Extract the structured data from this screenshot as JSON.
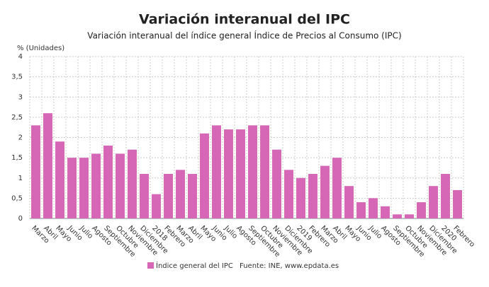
{
  "chart_data": {
    "type": "bar",
    "title": "Variación interanual del IPC",
    "subtitle": "Variación interanual del índice general Índice de Precios al Consumo (IPC)",
    "y_label": "% (Unidades)",
    "source": "Fuente: INE, www.epdata.es",
    "categories": [
      "Marzo",
      "Abril",
      "Mayo",
      "Junio",
      "Julio",
      "Agosto",
      "Septiembre",
      "Octubre",
      "Noviembre",
      "Diciembre",
      "2018",
      "Febrero",
      "Marzo",
      "Abril",
      "Mayo",
      "Junio",
      "Julio",
      "Agosto",
      "Septiembre",
      "Octubre",
      "Noviembre",
      "Diciembre",
      "2019",
      "Febrero",
      "Marzo",
      "Abril",
      "Mayo",
      "Junio",
      "Julio",
      "Agosto",
      "Septiembre",
      "Octubre",
      "Noviembre",
      "Diciembre",
      "2020",
      "Febrero"
    ],
    "series": [
      {
        "name": "Índice general del IPC",
        "color": "#d567b6",
        "values": [
          2.3,
          2.6,
          1.9,
          1.5,
          1.5,
          1.6,
          1.8,
          1.6,
          1.7,
          1.1,
          0.6,
          1.1,
          1.2,
          1.1,
          2.1,
          2.3,
          2.2,
          2.2,
          2.3,
          2.3,
          1.7,
          1.2,
          1.0,
          1.1,
          1.3,
          1.5,
          0.8,
          0.4,
          0.5,
          0.3,
          0.1,
          0.1,
          0.4,
          0.8,
          1.1,
          0.7
        ]
      }
    ],
    "ylim": [
      0,
      4
    ],
    "yticks": [
      0,
      {
        "value": 0.5,
        "label": "0,5"
      },
      1,
      {
        "value": 1.5,
        "label": "1,5"
      },
      2,
      {
        "value": 2.5,
        "label": "2,5"
      },
      3,
      {
        "value": 3.5,
        "label": "3,5"
      },
      4
    ],
    "grid": true
  }
}
